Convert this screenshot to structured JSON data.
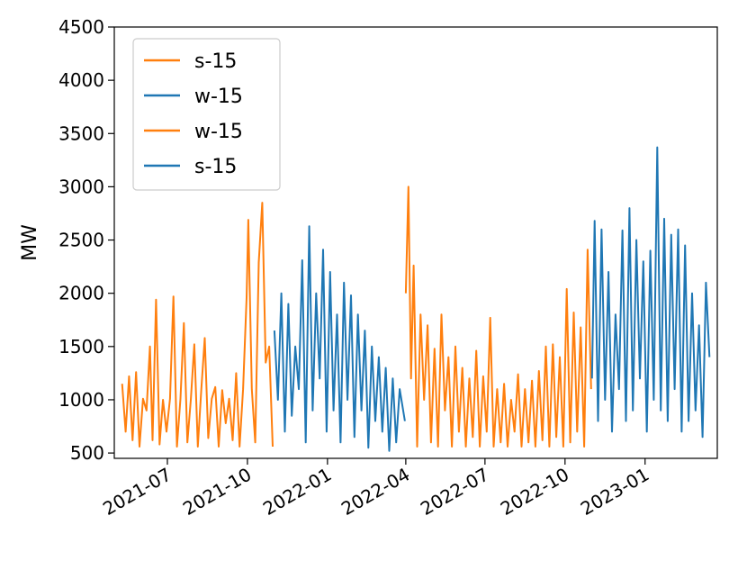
{
  "chart_data": {
    "type": "line",
    "title": "",
    "xlabel": "",
    "ylabel": "MW",
    "ylim": [
      450,
      4500
    ],
    "xlim": [
      "2021-05-01",
      "2023-03-25"
    ],
    "grid": false,
    "legend_position": "top-left",
    "y_ticks": [
      "500",
      "1000",
      "1500",
      "2000",
      "2500",
      "3000",
      "3500",
      "4000",
      "4500"
    ],
    "x_ticks": [
      "2021-07",
      "2021-10",
      "2022-01",
      "2022-04",
      "2022-07",
      "2022-10",
      "2023-01"
    ],
    "x_tick_values": [
      "2021-07-01",
      "2021-10-01",
      "2022-01-01",
      "2022-04-01",
      "2022-07-01",
      "2022-10-01",
      "2023-01-01"
    ],
    "legend": [
      {
        "label": "s-15",
        "color": "#ff7f0e"
      },
      {
        "label": "w-15",
        "color": "#1f77b4"
      },
      {
        "label": "w-15",
        "color": "#ff7f0e"
      },
      {
        "label": "s-15",
        "color": "#1f77b4"
      }
    ],
    "series": [
      {
        "color": "#ff7f0e",
        "x": [
          "2021-05-10",
          "2021-05-14",
          "2021-05-18",
          "2021-05-22",
          "2021-05-26",
          "2021-05-30",
          "2021-06-03",
          "2021-06-07",
          "2021-06-11",
          "2021-06-14",
          "2021-06-18",
          "2021-06-22",
          "2021-06-26",
          "2021-06-30",
          "2021-07-04",
          "2021-07-08",
          "2021-07-12",
          "2021-07-16",
          "2021-07-20",
          "2021-07-24",
          "2021-07-28",
          "2021-08-01",
          "2021-08-05",
          "2021-08-09",
          "2021-08-13",
          "2021-08-17",
          "2021-08-21",
          "2021-08-25",
          "2021-08-29",
          "2021-09-02",
          "2021-09-06",
          "2021-09-10",
          "2021-09-14",
          "2021-09-18",
          "2021-09-22",
          "2021-09-26",
          "2021-09-30",
          "2021-10-02",
          "2021-10-06",
          "2021-10-10",
          "2021-10-14",
          "2021-10-18",
          "2021-10-22",
          "2021-10-26",
          "2021-10-30"
        ],
        "y": [
          1150,
          700,
          1220,
          620,
          1260,
          560,
          1010,
          900,
          1500,
          620,
          1940,
          580,
          1000,
          700,
          1010,
          1970,
          560,
          1010,
          1720,
          600,
          1010,
          1520,
          560,
          1100,
          1580,
          640,
          1010,
          1120,
          560,
          1090,
          780,
          1010,
          620,
          1250,
          560,
          1100,
          1960,
          2690,
          1100,
          600,
          2290,
          2850,
          1350,
          1500,
          560
        ]
      },
      {
        "color": "#1f77b4",
        "x": [
          "2021-11-01",
          "2021-11-05",
          "2021-11-09",
          "2021-11-13",
          "2021-11-17",
          "2021-11-21",
          "2021-11-25",
          "2021-11-29",
          "2021-12-03",
          "2021-12-07",
          "2021-12-11",
          "2021-12-15",
          "2021-12-19",
          "2021-12-23",
          "2021-12-27",
          "2021-12-31",
          "2022-01-04",
          "2022-01-08",
          "2022-01-12",
          "2022-01-16",
          "2022-01-20",
          "2022-01-24",
          "2022-01-28",
          "2022-02-01",
          "2022-02-05",
          "2022-02-09",
          "2022-02-13",
          "2022-02-17",
          "2022-02-21",
          "2022-02-25",
          "2022-03-01",
          "2022-03-05",
          "2022-03-09",
          "2022-03-13",
          "2022-03-17",
          "2022-03-21",
          "2022-03-25",
          "2022-03-31"
        ],
        "y": [
          1650,
          1000,
          2000,
          700,
          1900,
          850,
          1500,
          1100,
          2310,
          600,
          2630,
          900,
          2000,
          1200,
          2410,
          700,
          2200,
          900,
          1800,
          600,
          2100,
          1000,
          1980,
          650,
          1800,
          900,
          1650,
          550,
          1500,
          800,
          1400,
          700,
          1300,
          520,
          1200,
          600,
          1100,
          800
        ]
      },
      {
        "color": "#ff7f0e",
        "x": [
          "2022-04-01",
          "2022-04-04",
          "2022-04-07",
          "2022-04-10",
          "2022-04-14",
          "2022-04-18",
          "2022-04-22",
          "2022-04-26",
          "2022-04-30",
          "2022-05-04",
          "2022-05-08",
          "2022-05-12",
          "2022-05-16",
          "2022-05-20",
          "2022-05-24",
          "2022-05-28",
          "2022-06-01",
          "2022-06-05",
          "2022-06-09",
          "2022-06-13",
          "2022-06-17",
          "2022-06-21",
          "2022-06-25",
          "2022-06-29",
          "2022-07-03",
          "2022-07-07",
          "2022-07-11",
          "2022-07-15",
          "2022-07-19",
          "2022-07-23",
          "2022-07-27",
          "2022-07-31",
          "2022-08-04",
          "2022-08-08",
          "2022-08-12",
          "2022-08-16",
          "2022-08-20",
          "2022-08-24",
          "2022-08-28",
          "2022-09-01",
          "2022-09-05",
          "2022-09-09",
          "2022-09-13",
          "2022-09-17",
          "2022-09-21",
          "2022-09-25",
          "2022-09-29",
          "2022-10-03",
          "2022-10-07",
          "2022-10-11",
          "2022-10-15",
          "2022-10-19",
          "2022-10-23",
          "2022-10-27",
          "2022-10-31"
        ],
        "y": [
          2000,
          3000,
          1200,
          2260,
          560,
          1800,
          1000,
          1700,
          600,
          1480,
          560,
          1800,
          900,
          1400,
          560,
          1500,
          700,
          1300,
          560,
          1200,
          650,
          1460,
          560,
          1220,
          700,
          1770,
          560,
          1100,
          600,
          1150,
          560,
          1000,
          700,
          1240,
          560,
          1100,
          600,
          1180,
          560,
          1270,
          620,
          1500,
          560,
          1520,
          650,
          1400,
          560,
          2040,
          600,
          1820,
          700,
          1680,
          560,
          2410,
          1100
        ]
      },
      {
        "color": "#1f77b4",
        "x": [
          "2022-11-01",
          "2022-11-04",
          "2022-11-08",
          "2022-11-12",
          "2022-11-16",
          "2022-11-20",
          "2022-11-24",
          "2022-11-28",
          "2022-12-02",
          "2022-12-06",
          "2022-12-10",
          "2022-12-14",
          "2022-12-18",
          "2022-12-22",
          "2022-12-26",
          "2022-12-30",
          "2023-01-03",
          "2023-01-07",
          "2023-01-11",
          "2023-01-15",
          "2023-01-19",
          "2023-01-23",
          "2023-01-27",
          "2023-01-31",
          "2023-02-04",
          "2023-02-08",
          "2023-02-12",
          "2023-02-16",
          "2023-02-20",
          "2023-02-24",
          "2023-02-28",
          "2023-03-04",
          "2023-03-08",
          "2023-03-12",
          "2023-03-16"
        ],
        "y": [
          1200,
          2680,
          800,
          2600,
          1000,
          2200,
          700,
          1800,
          1100,
          2590,
          800,
          2800,
          900,
          2500,
          1200,
          2300,
          700,
          2400,
          1000,
          3370,
          900,
          2700,
          800,
          2550,
          1100,
          2600,
          700,
          2450,
          800,
          2000,
          900,
          1700,
          650,
          2100,
          1400
        ]
      }
    ]
  }
}
